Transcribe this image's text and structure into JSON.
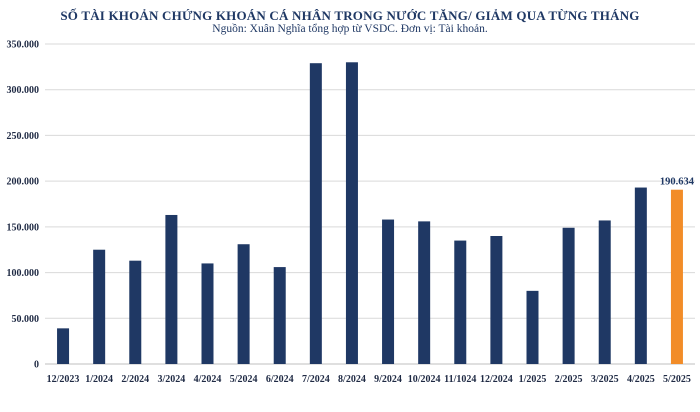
{
  "chart_data": {
    "type": "bar",
    "title": "SỐ TÀI KHOẢN CHỨNG KHOÁN CÁ NHÂN TRONG NƯỚC TĂNG/ GIẢM QUA TỪNG THÁNG",
    "subtitle": "Nguồn: Xuân Nghĩa tổng hợp từ VSDC. Đơn vị: Tài khoản.",
    "categories": [
      "12/2023",
      "1/2024",
      "2/2024",
      "3/2024",
      "4/2024",
      "5/2024",
      "6/2024",
      "7/2024",
      "8/2024",
      "9/2024",
      "10/2024",
      "11/1024",
      "12/2024",
      "1/2025",
      "2/2025",
      "3/2025",
      "4/2025",
      "5/2025"
    ],
    "series": [
      {
        "values": [
          39000,
          125000,
          113000,
          163000,
          110000,
          131000,
          106000,
          329000,
          330000,
          158000,
          156000,
          135000,
          140000,
          80000,
          149000,
          157000,
          193000,
          190634
        ]
      }
    ],
    "ylim": [
      0,
      350000
    ],
    "yticks": [
      "0",
      "50.000",
      "100.000",
      "150.000",
      "200.000",
      "250.000",
      "300.000",
      "350.000"
    ],
    "ytick_values": [
      0,
      50000,
      100000,
      150000,
      200000,
      250000,
      300000,
      350000
    ],
    "data_labels": [
      {
        "index": 17,
        "text": "190.634"
      }
    ],
    "grid": true,
    "colors": {
      "bar": "#1f3864",
      "highlight": "#f28c28",
      "grid": "#d9d9d9"
    }
  }
}
